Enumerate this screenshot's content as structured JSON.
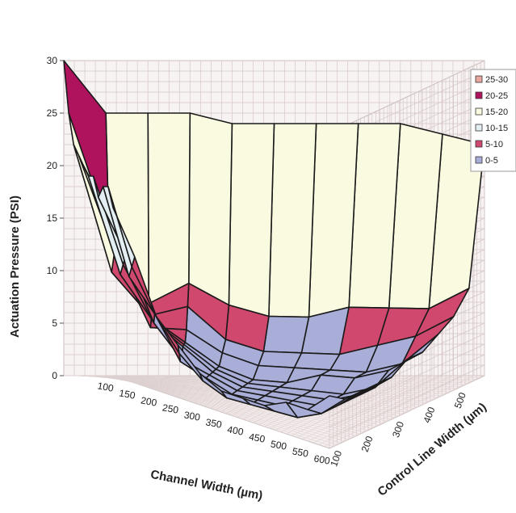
{
  "chart_data": {
    "type": "surface",
    "title": "",
    "xlabel": "Channel Width (µm)",
    "ylabel": "Control Line Width (µm)",
    "zlabel": "Actuation Pressure (PSI)",
    "zlim": [
      0,
      30
    ],
    "z_ticks": [
      "0",
      "5",
      "10",
      "15",
      "20",
      "25",
      "30"
    ],
    "x_ticks": [
      "100",
      "150",
      "200",
      "250",
      "300",
      "350",
      "400",
      "450",
      "500",
      "550",
      "600"
    ],
    "y_ticks": [
      "100",
      "200",
      "300",
      "400",
      "500"
    ],
    "grid": true,
    "legend_position": "top-right",
    "legend": [
      {
        "label": "25-30",
        "color": "#e8a8a0"
      },
      {
        "label": "20-25",
        "color": "#b0135e"
      },
      {
        "label": "15-20",
        "color": "#fafae0"
      },
      {
        "label": "10-15",
        "color": "#e2eef2"
      },
      {
        "label": "5-10",
        "color": "#d0486e"
      },
      {
        "label": "0-5",
        "color": "#a8aed8"
      }
    ],
    "x": [
      100,
      150,
      200,
      250,
      300,
      350,
      400,
      450,
      500,
      550,
      600
    ],
    "y": [
      100,
      150,
      200,
      250,
      300,
      350,
      400,
      450,
      500,
      550,
      600
    ],
    "z_rows_by_channel_width": [
      [
        16,
        18,
        18,
        17,
        19,
        19,
        20,
        21,
        22,
        25,
        30
      ],
      [
        12,
        11,
        10,
        12,
        11,
        10,
        14,
        12,
        10,
        14,
        25
      ],
      [
        7,
        7,
        7,
        6,
        6,
        6,
        6,
        5,
        6,
        7,
        25
      ],
      [
        5,
        4,
        3,
        3,
        4,
        4,
        4,
        5,
        7,
        9,
        25
      ],
      [
        3,
        2,
        2,
        2,
        2,
        2,
        2,
        3,
        4,
        7,
        24
      ],
      [
        2,
        1,
        1,
        1,
        1,
        1,
        1,
        2,
        3,
        6,
        24
      ],
      [
        2,
        1,
        1,
        1,
        1,
        1,
        1,
        2,
        3,
        6,
        24
      ],
      [
        2,
        1,
        1,
        1,
        1,
        1,
        2,
        2,
        3,
        7,
        24
      ],
      [
        3,
        1,
        1,
        1,
        1,
        1,
        2,
        2,
        4,
        7,
        24
      ],
      [
        3,
        2,
        2,
        2,
        2,
        2,
        3,
        3,
        5,
        7,
        23
      ],
      [
        5,
        4,
        4,
        4,
        4,
        5,
        5,
        6,
        7,
        9,
        22
      ]
    ]
  }
}
